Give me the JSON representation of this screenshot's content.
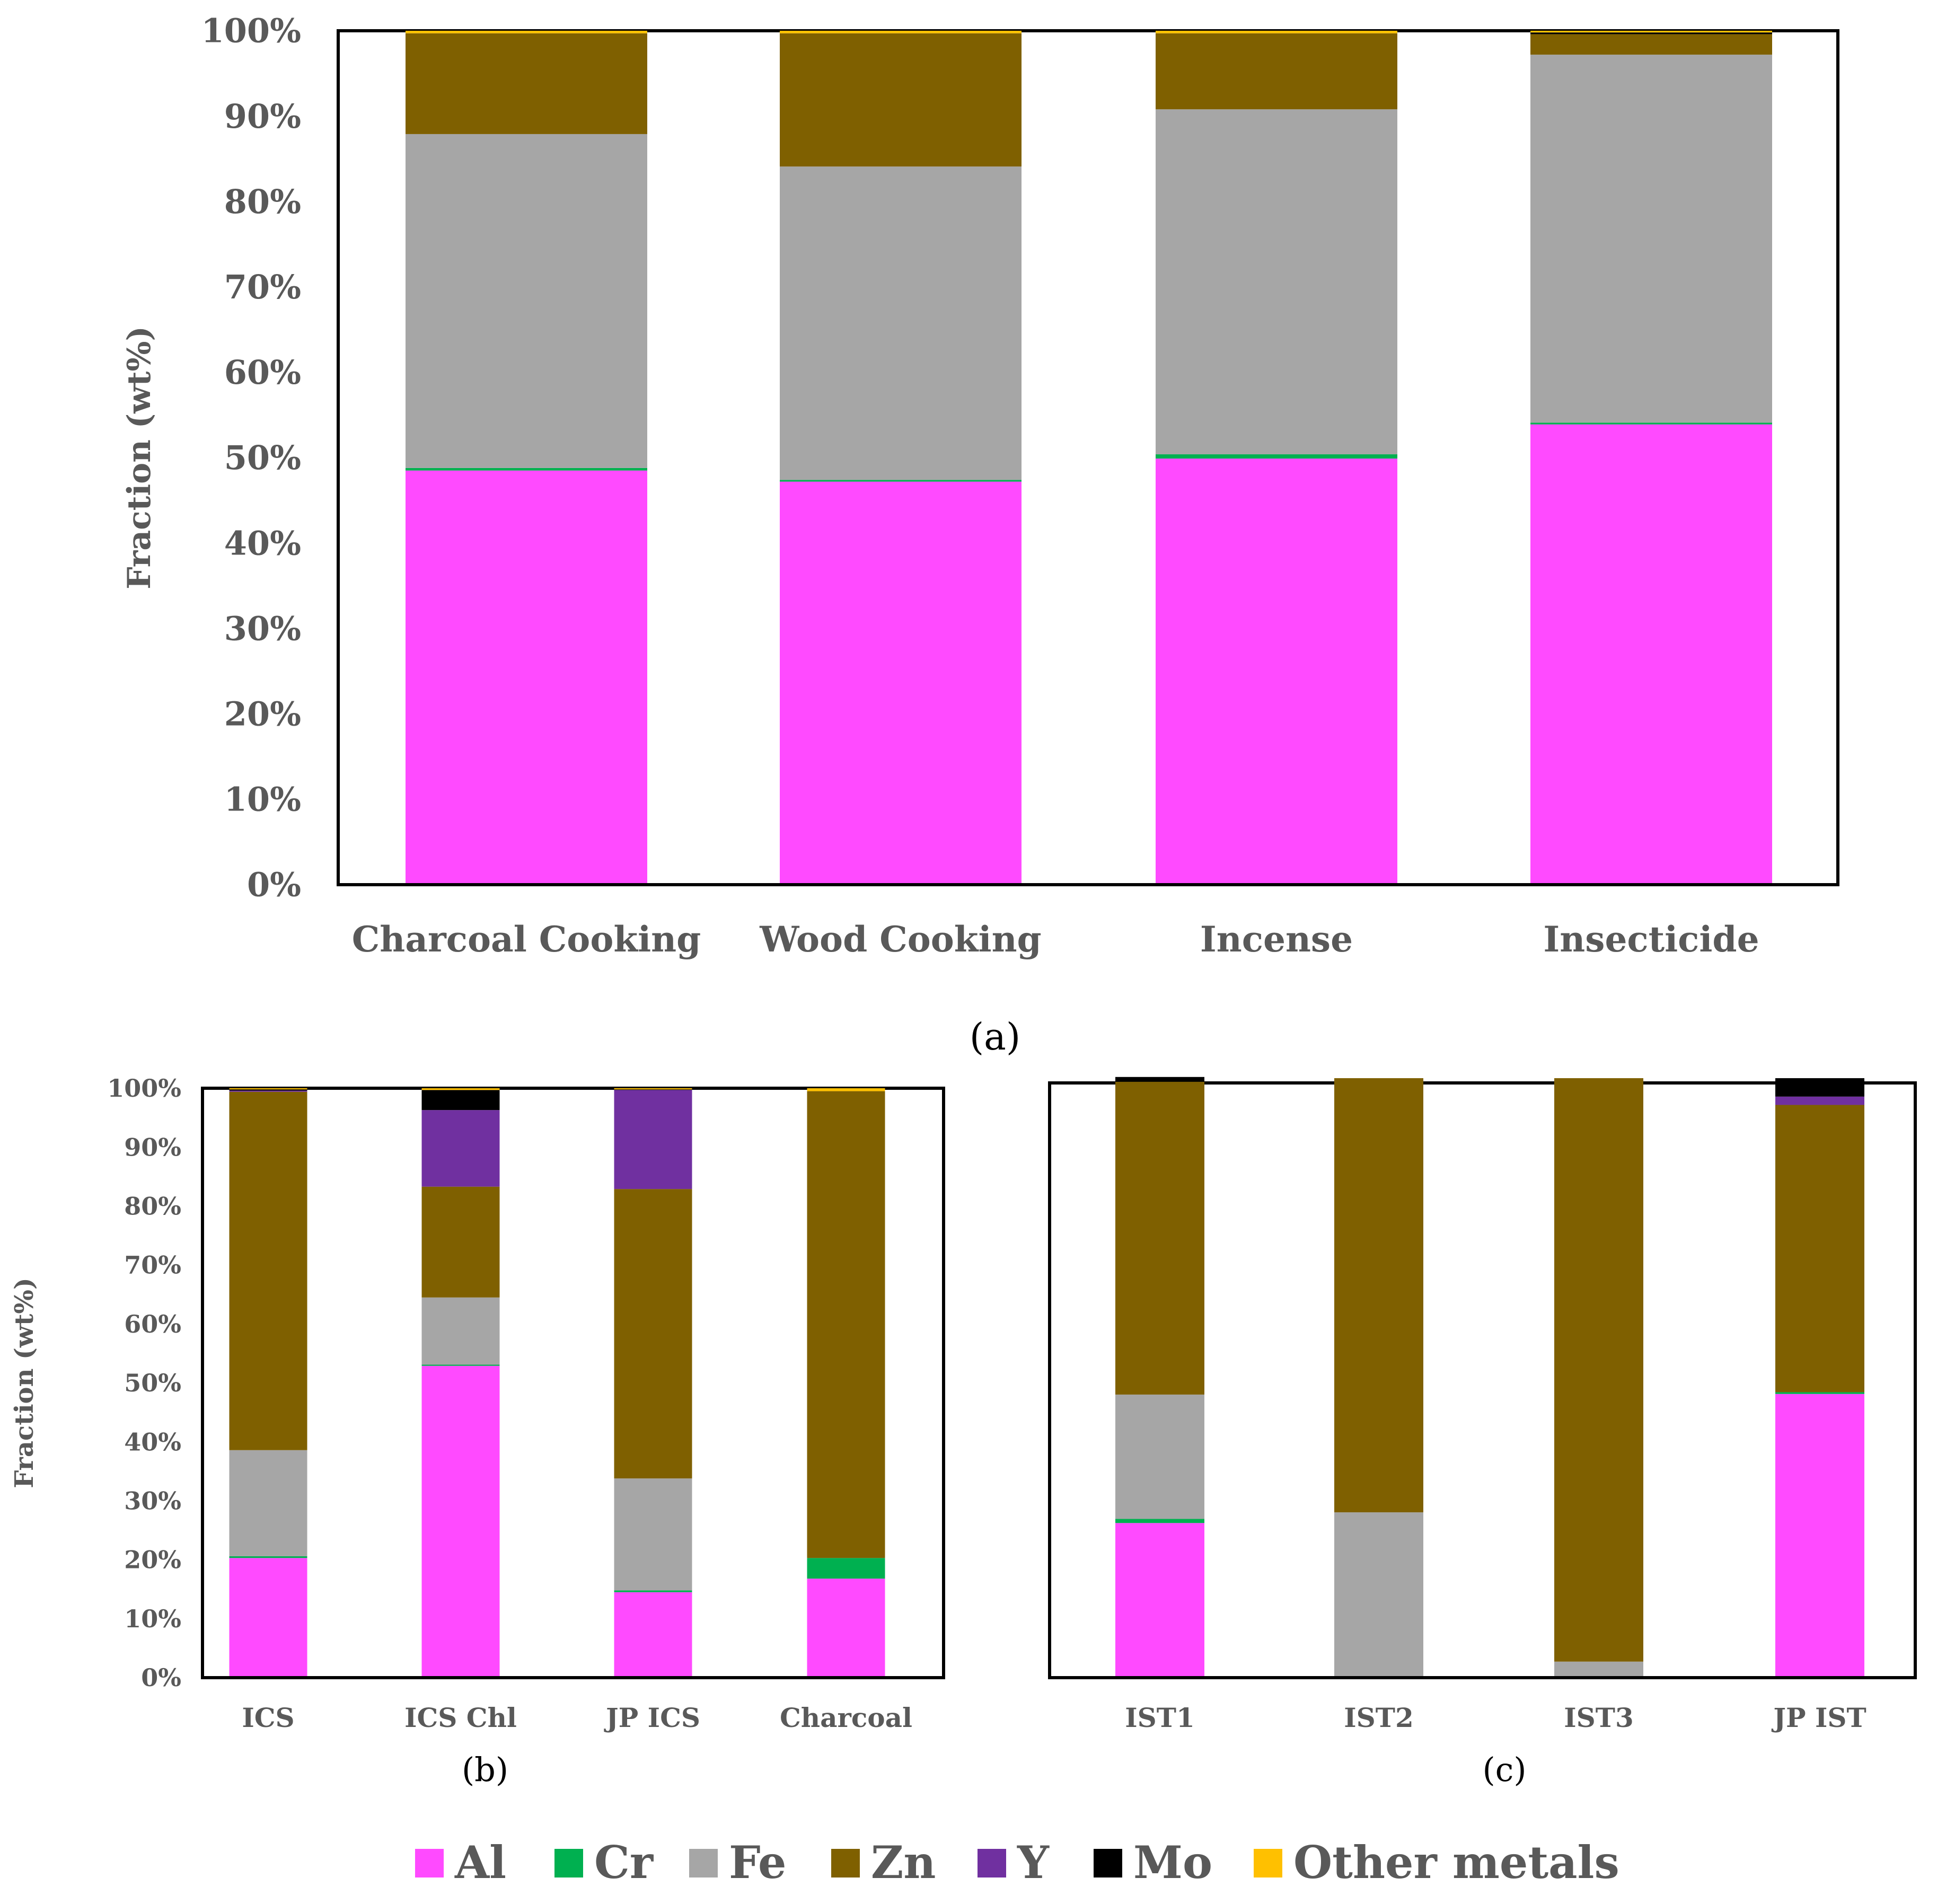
{
  "colors": {
    "Al": "#ff4aff",
    "Cr": "#00b050",
    "Fe": "#a6a6a6",
    "Zn": "#7f6000",
    "Y": "#7030a0",
    "Mo": "#000000",
    "Other metals": "#ffc000"
  },
  "legend": {
    "items": [
      {
        "name": "Al",
        "color": "#ff4aff"
      },
      {
        "name": "Cr",
        "color": "#00b050"
      },
      {
        "name": "Fe",
        "color": "#a6a6a6"
      },
      {
        "name": "Zn",
        "color": "#7f6000"
      },
      {
        "name": "Y",
        "color": "#7030a0"
      },
      {
        "name": "Mo",
        "color": "#000000"
      },
      {
        "name": "Other metals",
        "color": "#ffc000"
      }
    ]
  },
  "chart_data": [
    {
      "id": "a",
      "type": "bar",
      "stacked": true,
      "panel_label": "(a)",
      "ylabel": "Fraction (wt%)",
      "ylim": [
        0,
        100
      ],
      "yticks": [
        "0%",
        "10%",
        "20%",
        "30%",
        "40%",
        "50%",
        "60%",
        "70%",
        "80%",
        "90%",
        "100%"
      ],
      "categories": [
        "Charcoal Cooking",
        "Wood Cooking",
        "Incense",
        "Insecticide"
      ],
      "series": [
        {
          "name": "Al",
          "values": [
            48.5,
            47.2,
            49.9,
            53.9
          ]
        },
        {
          "name": "Cr",
          "values": [
            0.3,
            0.2,
            0.5,
            0.2
          ]
        },
        {
          "name": "Fe",
          "values": [
            39.1,
            36.7,
            40.4,
            43.1
          ]
        },
        {
          "name": "Zn",
          "values": [
            11.8,
            15.6,
            8.9,
            2.4
          ]
        },
        {
          "name": "Y",
          "values": [
            0,
            0,
            0,
            0
          ]
        },
        {
          "name": "Mo",
          "values": [
            0,
            0,
            0,
            0.2
          ]
        },
        {
          "name": "Other metals",
          "values": [
            0.3,
            0.3,
            0.3,
            0.2
          ]
        }
      ]
    },
    {
      "id": "b",
      "type": "bar",
      "stacked": true,
      "panel_label": "(b)",
      "ylabel": "Fraction  (wt%)",
      "ylim": [
        0,
        100
      ],
      "yticks": [
        "0%",
        "10%",
        "20%",
        "30%",
        "40%",
        "50%",
        "60%",
        "70%",
        "80%",
        "90%",
        "100%"
      ],
      "categories": [
        "ICS",
        "ICS Chl",
        "JP ICS",
        "Charcoal"
      ],
      "series": [
        {
          "name": "Al",
          "values": [
            20.3,
            52.9,
            14.5,
            16.8
          ]
        },
        {
          "name": "Cr",
          "values": [
            0.3,
            0.2,
            0.3,
            3.5
          ]
        },
        {
          "name": "Fe",
          "values": [
            18.0,
            11.4,
            19.0,
            0
          ]
        },
        {
          "name": "Zn",
          "values": [
            60.8,
            18.8,
            49.1,
            79.2
          ]
        },
        {
          "name": "Y",
          "values": [
            0.2,
            13.0,
            16.8,
            0
          ]
        },
        {
          "name": "Mo",
          "values": [
            0.2,
            3.4,
            0.1,
            0
          ]
        },
        {
          "name": "Other metals",
          "values": [
            0.2,
            0.3,
            0.2,
            0.5
          ]
        }
      ]
    },
    {
      "id": "c",
      "type": "bar",
      "stacked": true,
      "panel_label": "(c)",
      "ylabel": "",
      "ylim": [
        0,
        100
      ],
      "categories": [
        "IST1",
        "IST2",
        "IST3",
        "JP IST"
      ],
      "series": [
        {
          "name": "Al",
          "values": [
            26.0,
            0,
            0,
            47.7
          ]
        },
        {
          "name": "Cr",
          "values": [
            0.7,
            0,
            0,
            0.3
          ]
        },
        {
          "name": "Fe",
          "values": [
            20.9,
            27.8,
            2.7,
            0
          ]
        },
        {
          "name": "Zn",
          "values": [
            52.6,
            73.0,
            98.1,
            48.3
          ]
        },
        {
          "name": "Y",
          "values": [
            0,
            0,
            0,
            1.4
          ]
        },
        {
          "name": "Mo",
          "values": [
            0.8,
            0,
            0,
            3.1
          ]
        },
        {
          "name": "Other metals",
          "values": [
            0,
            0,
            0,
            0
          ]
        }
      ]
    }
  ]
}
